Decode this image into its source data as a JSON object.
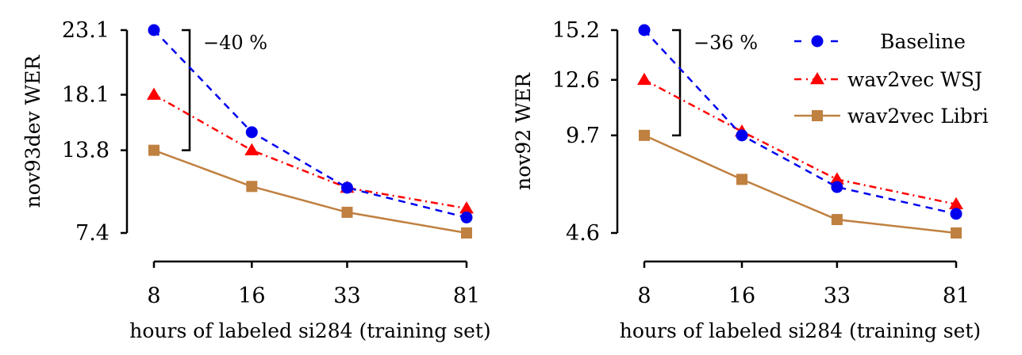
{
  "chart_data": [
    {
      "type": "line",
      "title": "",
      "xlabel": "hours of labeled si284 (training set)",
      "ylabel": "nov93dev WER",
      "x": [
        8,
        16,
        33,
        81
      ],
      "x_tick_labels": [
        "8",
        "16",
        "33",
        "81"
      ],
      "x_scale": "log",
      "y_ticks": [
        7.4,
        13.8,
        18.1,
        23.1
      ],
      "y_tick_labels": [
        "7.4",
        "13.8",
        "18.1",
        "23.1"
      ],
      "ylim": [
        7.4,
        23.1
      ],
      "grid": false,
      "series": [
        {
          "name": "Baseline",
          "values": [
            23.1,
            15.2,
            10.9,
            8.6
          ],
          "color": "#0000ee",
          "marker": "circle",
          "linestyle": "dashed"
        },
        {
          "name": "wav2vec WSJ",
          "values": [
            18.1,
            13.8,
            10.9,
            9.3
          ],
          "color": "#ff0000",
          "marker": "triangle",
          "linestyle": "dashdot"
        },
        {
          "name": "wav2vec Libri",
          "values": [
            13.8,
            11.0,
            9.0,
            7.4
          ],
          "color": "#c08040",
          "marker": "square",
          "linestyle": "solid"
        }
      ],
      "annotation": {
        "text": "−40 %",
        "from": 23.1,
        "to": 13.8
      }
    },
    {
      "type": "line",
      "title": "",
      "xlabel": "hours of labeled si284 (training set)",
      "ylabel": "nov92 WER",
      "x": [
        8,
        16,
        33,
        81
      ],
      "x_tick_labels": [
        "8",
        "16",
        "33",
        "81"
      ],
      "x_scale": "log",
      "y_ticks": [
        4.6,
        9.7,
        12.6,
        15.2
      ],
      "y_tick_labels": [
        "4.6",
        "9.7",
        "12.6",
        "15.2"
      ],
      "ylim": [
        4.6,
        15.2
      ],
      "grid": false,
      "legend": "top-right",
      "series": [
        {
          "name": "Baseline",
          "values": [
            15.2,
            9.7,
            7.0,
            5.6
          ],
          "color": "#0000ee",
          "marker": "circle",
          "linestyle": "dashed"
        },
        {
          "name": "wav2vec WSJ",
          "values": [
            12.6,
            9.9,
            7.4,
            6.1
          ],
          "color": "#ff0000",
          "marker": "triangle",
          "linestyle": "dashdot"
        },
        {
          "name": "wav2vec Libri",
          "values": [
            9.7,
            7.4,
            5.3,
            4.6
          ],
          "color": "#c08040",
          "marker": "square",
          "linestyle": "solid"
        }
      ],
      "annotation": {
        "text": "−36 %",
        "from": 15.2,
        "to": 9.7
      }
    }
  ],
  "legend": {
    "items": [
      "Baseline",
      "wav2vec WSJ",
      "wav2vec Libri"
    ]
  }
}
